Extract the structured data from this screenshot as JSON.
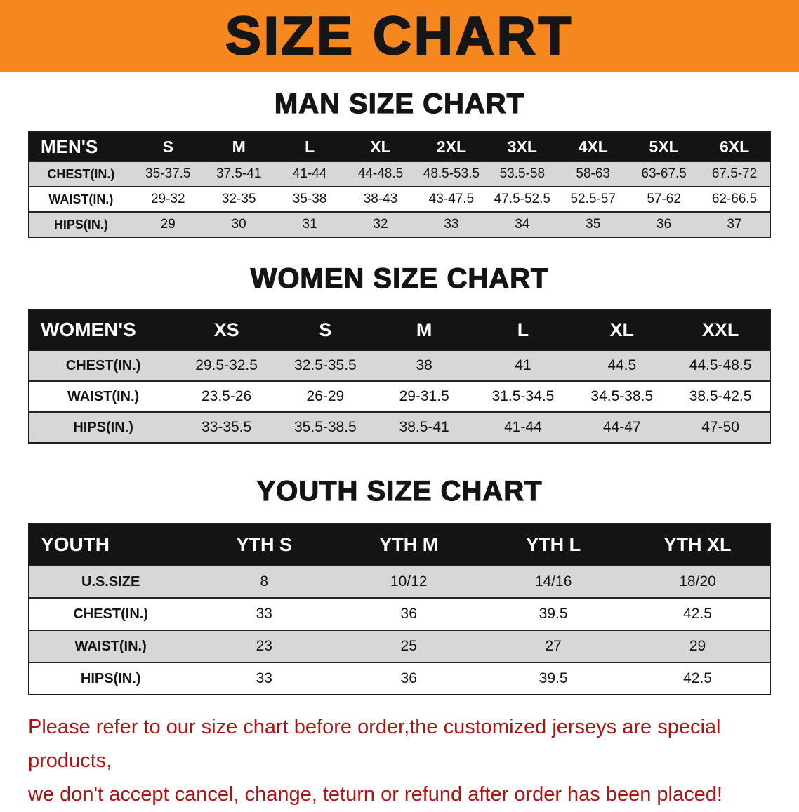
{
  "banner": {
    "title": "SIZE CHART",
    "bg": "#f6871f",
    "text_color": "#161616"
  },
  "sections": [
    {
      "name": "men",
      "heading": "MAN SIZE CHART",
      "table": {
        "header": [
          "MEN'S",
          "S",
          "M",
          "L",
          "XL",
          "2XL",
          "3XL",
          "4XL",
          "5XL",
          "6XL"
        ],
        "rows": [
          {
            "label": "CHEST(IN.)",
            "values": [
              "35-37.5",
              "37.5-41",
              "41-44",
              "44-48.5",
              "48.5-53.5",
              "53.5-58",
              "58-63",
              "63-67.5",
              "67.5-72"
            ]
          },
          {
            "label": "WAIST(IN.)",
            "values": [
              "29-32",
              "32-35",
              "35-38",
              "38-43",
              "43-47.5",
              "47.5-52.5",
              "52.5-57",
              "57-62",
              "62-66.5"
            ]
          },
          {
            "label": "HIPS(IN.)",
            "values": [
              "29",
              "30",
              "31",
              "32",
              "33",
              "34",
              "35",
              "36",
              "37"
            ]
          }
        ]
      }
    },
    {
      "name": "women",
      "heading": "WOMEN SIZE CHART",
      "table": {
        "header": [
          "WOMEN'S",
          "XS",
          "S",
          "M",
          "L",
          "XL",
          "XXL"
        ],
        "rows": [
          {
            "label": "CHEST(IN.)",
            "values": [
              "29.5-32.5",
              "32.5-35.5",
              "38",
              "41",
              "44.5",
              "44.5-48.5"
            ]
          },
          {
            "label": "WAIST(IN.)",
            "values": [
              "23.5-26",
              "26-29",
              "29-31.5",
              "31.5-34.5",
              "34.5-38.5",
              "38.5-42.5"
            ]
          },
          {
            "label": "HIPS(IN.)",
            "values": [
              "33-35.5",
              "35.5-38.5",
              "38.5-41",
              "41-44",
              "44-47",
              "47-50"
            ]
          }
        ]
      }
    },
    {
      "name": "youth",
      "heading": "YOUTH SIZE CHART",
      "table": {
        "header": [
          "YOUTH",
          "YTH S",
          "YTH M",
          "YTH L",
          "YTH XL"
        ],
        "rows": [
          {
            "label": "U.S.SIZE",
            "values": [
              "8",
              "10/12",
              "14/16",
              "18/20"
            ]
          },
          {
            "label": "CHEST(IN.)",
            "values": [
              "33",
              "36",
              "39.5",
              "42.5"
            ]
          },
          {
            "label": "WAIST(IN.)",
            "values": [
              "23",
              "25",
              "27",
              "29"
            ]
          },
          {
            "label": "HIPS(IN.)",
            "values": [
              "33",
              "36",
              "39.5",
              "42.5"
            ]
          }
        ]
      }
    }
  ],
  "footer": {
    "line1": "Please refer to our size chart before order,the customized jerseys are special products,",
    "line2": "we don't accept cancel, change, teturn or refund after order has been placed!",
    "color": "#b01212"
  }
}
